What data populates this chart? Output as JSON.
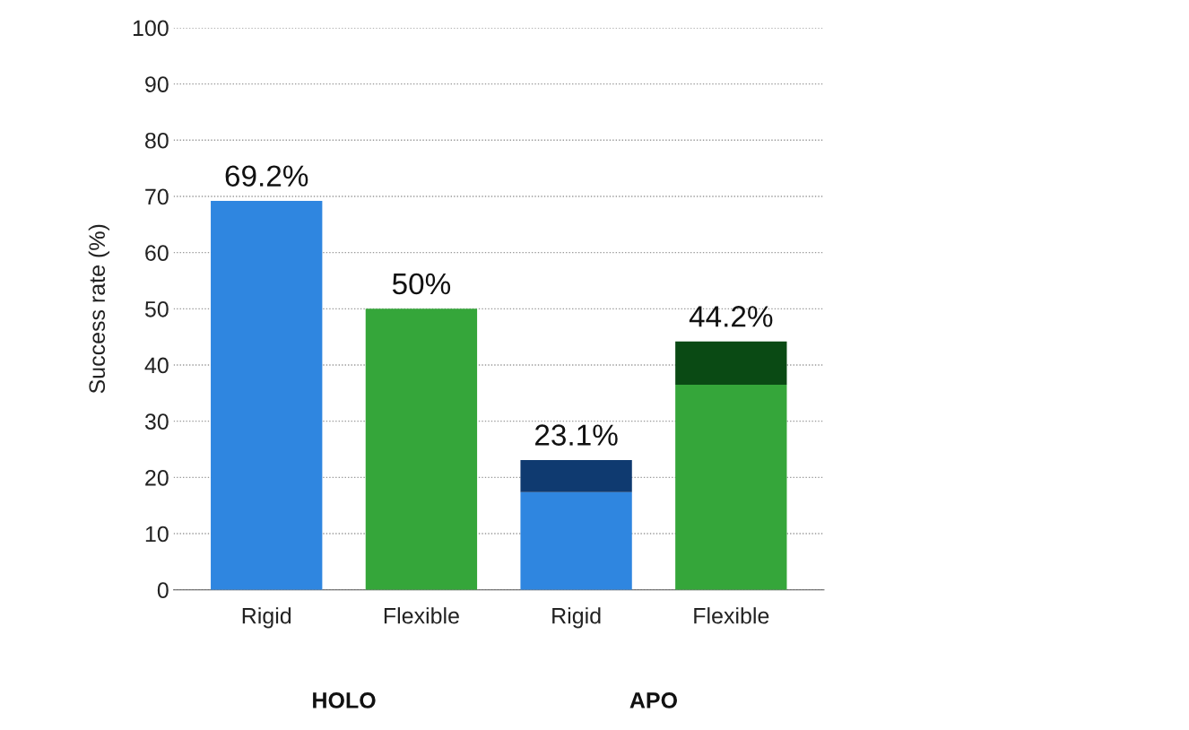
{
  "chart_data": {
    "type": "bar",
    "stacked": true,
    "ylabel": "Success rate (%)",
    "categories": [
      "Rigid",
      "Flexible",
      "Rigid",
      "Flexible"
    ],
    "series": [
      {
        "colors": [
          "#2f86e0",
          "#35a63a",
          "#2f86e0",
          "#35a63a"
        ],
        "values": [
          69.2,
          50,
          17.4,
          36.5
        ]
      },
      {
        "colors": [
          "#0f3a70",
          "#0a4a14",
          "#0f3a70",
          "#0a4a14"
        ],
        "values": [
          null,
          null,
          5.7,
          7.7
        ]
      }
    ],
    "totals": [
      "69.2%",
      "50%",
      "23.1%",
      "44.2%"
    ],
    "annotations": [
      "HOLO",
      "APO"
    ],
    "ylim": [
      0,
      100
    ],
    "yticks": [
      0,
      10,
      20,
      30,
      40,
      50,
      60,
      70,
      80,
      90,
      100
    ],
    "grid": "y",
    "legend": false
  }
}
